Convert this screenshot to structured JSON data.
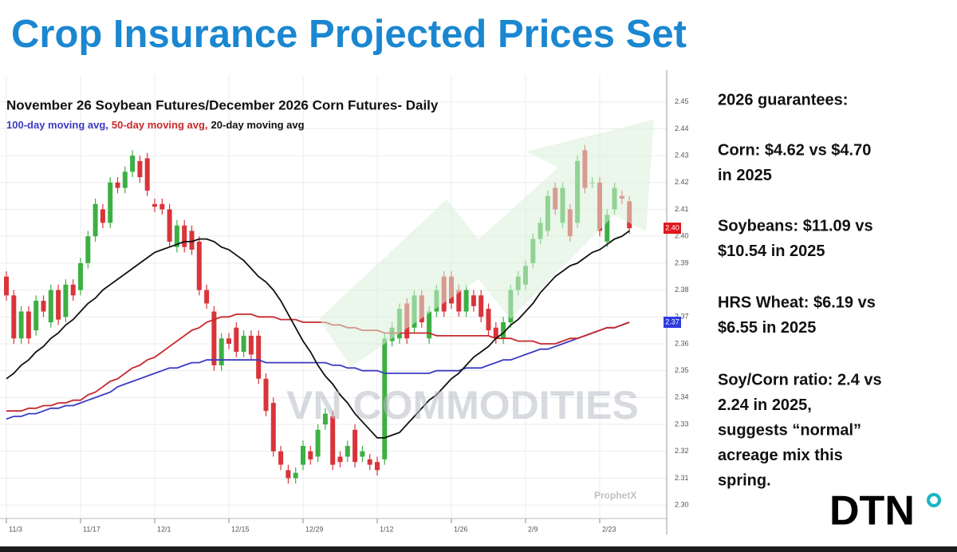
{
  "title": "Crop Insurance Projected Prices Set",
  "chart_data": {
    "type": "candlestick",
    "title": "November 26 Soybean Futures/December 2026 Corn Futures- Daily",
    "categories": [
      "11/3",
      null,
      null,
      null,
      null,
      null,
      null,
      null,
      null,
      null,
      "11/17",
      null,
      null,
      null,
      null,
      null,
      null,
      null,
      null,
      null,
      "12/1",
      null,
      null,
      null,
      null,
      null,
      null,
      null,
      null,
      null,
      "12/15",
      null,
      null,
      null,
      null,
      null,
      null,
      null,
      null,
      null,
      "12/29",
      null,
      null,
      null,
      null,
      null,
      null,
      null,
      null,
      null,
      "1/12",
      null,
      null,
      null,
      null,
      null,
      null,
      null,
      null,
      null,
      "1/26",
      null,
      null,
      null,
      null,
      null,
      null,
      null,
      null,
      null,
      "2/9",
      null,
      null,
      null,
      null,
      null,
      null,
      null,
      null,
      null,
      "2/23",
      null,
      null,
      null,
      null
    ],
    "open": [
      2.385,
      2.378,
      2.362,
      2.372,
      2.365,
      2.376,
      2.368,
      2.38,
      2.37,
      2.382,
      2.38,
      2.39,
      2.4,
      2.41,
      2.405,
      2.42,
      2.418,
      2.424,
      2.428,
      2.429,
      2.412,
      2.412,
      2.41,
      2.396,
      2.404,
      2.402,
      2.398,
      2.38,
      2.372,
      2.352,
      2.362,
      2.366,
      2.357,
      2.363,
      2.363,
      2.347,
      2.338,
      2.32,
      2.313,
      2.31,
      2.315,
      2.32,
      2.318,
      2.33,
      2.333,
      2.318,
      2.318,
      2.328,
      2.318,
      2.317,
      2.316,
      2.317,
      2.361,
      2.362,
      2.375,
      2.366,
      2.378,
      2.362,
      2.372,
      2.385,
      2.385,
      2.38,
      2.372,
      2.378,
      2.378,
      2.373,
      2.366,
      2.362,
      2.368,
      2.38,
      2.382,
      2.39,
      2.399,
      2.402,
      2.418,
      2.405,
      2.41,
      2.405,
      2.432,
      2.42,
      2.42,
      2.398,
      2.41,
      2.415,
      2.413
    ],
    "high": [
      2.387,
      2.38,
      2.374,
      2.374,
      2.378,
      2.378,
      2.382,
      2.382,
      2.384,
      2.384,
      2.392,
      2.402,
      2.414,
      2.412,
      2.422,
      2.422,
      2.426,
      2.432,
      2.43,
      2.431,
      2.414,
      2.414,
      2.412,
      2.406,
      2.406,
      2.404,
      2.4,
      2.382,
      2.374,
      2.364,
      2.364,
      2.368,
      2.365,
      2.365,
      2.365,
      2.349,
      2.34,
      2.322,
      2.315,
      2.314,
      2.324,
      2.322,
      2.33,
      2.336,
      2.335,
      2.32,
      2.324,
      2.33,
      2.322,
      2.319,
      2.318,
      2.364,
      2.368,
      2.375,
      2.377,
      2.38,
      2.38,
      2.374,
      2.382,
      2.387,
      2.387,
      2.382,
      2.382,
      2.38,
      2.38,
      2.375,
      2.368,
      2.37,
      2.382,
      2.387,
      2.391,
      2.401,
      2.407,
      2.417,
      2.42,
      2.42,
      2.412,
      2.43,
      2.434,
      2.422,
      2.422,
      2.41,
      2.42,
      2.417,
      2.415
    ],
    "low": [
      2.376,
      2.36,
      2.36,
      2.36,
      2.363,
      2.37,
      2.366,
      2.367,
      2.368,
      2.376,
      2.378,
      2.388,
      2.398,
      2.403,
      2.403,
      2.416,
      2.416,
      2.422,
      2.42,
      2.415,
      2.409,
      2.408,
      2.396,
      2.394,
      2.394,
      2.393,
      2.378,
      2.373,
      2.35,
      2.35,
      2.358,
      2.355,
      2.355,
      2.354,
      2.345,
      2.333,
      2.318,
      2.313,
      2.308,
      2.308,
      2.313,
      2.315,
      2.316,
      2.328,
      2.313,
      2.314,
      2.316,
      2.314,
      2.316,
      2.313,
      2.311,
      2.315,
      2.359,
      2.36,
      2.36,
      2.364,
      2.366,
      2.36,
      2.37,
      2.37,
      2.373,
      2.37,
      2.37,
      2.372,
      2.368,
      2.363,
      2.36,
      2.36,
      2.366,
      2.378,
      2.38,
      2.388,
      2.397,
      2.4,
      2.408,
      2.403,
      2.398,
      2.403,
      2.416,
      2.418,
      2.4,
      2.396,
      2.408,
      2.412,
      2.401
    ],
    "close": [
      2.378,
      2.362,
      2.372,
      2.362,
      2.376,
      2.372,
      2.38,
      2.369,
      2.382,
      2.378,
      2.39,
      2.4,
      2.412,
      2.405,
      2.42,
      2.418,
      2.424,
      2.43,
      2.422,
      2.417,
      2.411,
      2.41,
      2.398,
      2.404,
      2.396,
      2.395,
      2.38,
      2.375,
      2.352,
      2.362,
      2.36,
      2.357,
      2.363,
      2.356,
      2.347,
      2.335,
      2.32,
      2.315,
      2.31,
      2.312,
      2.322,
      2.317,
      2.328,
      2.334,
      2.315,
      2.316,
      2.322,
      2.316,
      2.32,
      2.315,
      2.313,
      2.362,
      2.366,
      2.373,
      2.362,
      2.378,
      2.368,
      2.372,
      2.38,
      2.372,
      2.375,
      2.372,
      2.38,
      2.374,
      2.37,
      2.365,
      2.362,
      2.368,
      2.38,
      2.385,
      2.389,
      2.399,
      2.405,
      2.415,
      2.41,
      2.418,
      2.4,
      2.428,
      2.418,
      2.42,
      2.402,
      2.408,
      2.418,
      2.414,
      2.403
    ],
    "up_color": "#3cb043",
    "down_color": "#d9343a",
    "series": [
      {
        "name": "100-day moving avg,",
        "color": "#3b3bc4",
        "values": [
          2.332,
          2.333,
          2.333,
          2.334,
          2.334,
          2.335,
          2.336,
          2.336,
          2.337,
          2.337,
          2.338,
          2.339,
          2.34,
          2.341,
          2.342,
          2.344,
          2.345,
          2.346,
          2.347,
          2.348,
          2.349,
          2.35,
          2.351,
          2.351,
          2.352,
          2.353,
          2.353,
          2.354,
          2.354,
          2.354,
          2.354,
          2.354,
          2.354,
          2.354,
          2.354,
          2.353,
          2.353,
          2.353,
          2.353,
          2.353,
          2.353,
          2.353,
          2.353,
          2.353,
          2.352,
          2.352,
          2.351,
          2.351,
          2.35,
          2.35,
          2.35,
          2.349,
          2.349,
          2.349,
          2.349,
          2.349,
          2.349,
          2.349,
          2.35,
          2.35,
          2.35,
          2.35,
          2.351,
          2.351,
          2.351,
          2.352,
          2.353,
          2.354,
          2.354,
          2.355,
          2.356,
          2.357,
          2.358,
          2.358,
          2.359,
          2.36,
          2.361,
          2.362,
          2.363,
          2.364,
          2.365,
          2.366,
          2.366,
          2.367,
          2.368
        ]
      },
      {
        "name": "50-day moving avg,",
        "color": "#c8282c",
        "values": [
          2.335,
          2.335,
          2.335,
          2.336,
          2.336,
          2.337,
          2.337,
          2.338,
          2.338,
          2.339,
          2.339,
          2.341,
          2.342,
          2.344,
          2.346,
          2.347,
          2.349,
          2.351,
          2.352,
          2.354,
          2.355,
          2.357,
          2.359,
          2.361,
          2.363,
          2.365,
          2.366,
          2.368,
          2.369,
          2.37,
          2.37,
          2.371,
          2.371,
          2.371,
          2.37,
          2.37,
          2.37,
          2.369,
          2.369,
          2.369,
          2.368,
          2.368,
          2.368,
          2.368,
          2.367,
          2.367,
          2.366,
          2.366,
          2.365,
          2.365,
          2.365,
          2.364,
          2.364,
          2.364,
          2.364,
          2.364,
          2.364,
          2.364,
          2.363,
          2.363,
          2.363,
          2.363,
          2.363,
          2.363,
          2.363,
          2.363,
          2.362,
          2.362,
          2.362,
          2.361,
          2.361,
          2.361,
          2.36,
          2.36,
          2.36,
          2.361,
          2.362,
          2.362,
          2.363,
          2.364,
          2.365,
          2.366,
          2.366,
          2.367,
          2.368
        ]
      },
      {
        "name": "20-day moving avg",
        "color": "#111111",
        "values": [
          2.347,
          2.349,
          2.352,
          2.354,
          2.357,
          2.359,
          2.362,
          2.364,
          2.367,
          2.369,
          2.372,
          2.375,
          2.377,
          2.38,
          2.382,
          2.384,
          2.386,
          2.388,
          2.39,
          2.392,
          2.394,
          2.395,
          2.396,
          2.397,
          2.398,
          2.398,
          2.399,
          2.399,
          2.398,
          2.396,
          2.395,
          2.393,
          2.391,
          2.388,
          2.385,
          2.383,
          2.38,
          2.376,
          2.371,
          2.366,
          2.361,
          2.357,
          2.352,
          2.348,
          2.345,
          2.341,
          2.338,
          2.334,
          2.331,
          2.328,
          2.325,
          2.325,
          2.326,
          2.327,
          2.33,
          2.333,
          2.336,
          2.339,
          2.341,
          2.344,
          2.347,
          2.349,
          2.352,
          2.355,
          2.357,
          2.359,
          2.362,
          2.364,
          2.367,
          2.369,
          2.372,
          2.375,
          2.379,
          2.382,
          2.385,
          2.387,
          2.389,
          2.39,
          2.392,
          2.394,
          2.395,
          2.397,
          2.399,
          2.4,
          2.402
        ]
      }
    ],
    "ylim": [
      2.295,
      2.46
    ],
    "yticks": [
      {
        "value": 2.3,
        "label": "2.30"
      },
      2.31,
      2.32,
      2.33,
      2.34,
      2.35,
      2.36,
      2.37,
      2.38,
      2.39,
      {
        "value": 2.4,
        "label": "2.40"
      },
      2.41,
      2.42,
      2.43,
      2.44,
      2.45
    ],
    "grid": true,
    "price_tags": [
      {
        "value": 2.403,
        "label": "2.40",
        "color": "#e0161b"
      },
      {
        "value": 2.368,
        "label": "2.37",
        "color": "#2d3be0"
      }
    ]
  },
  "watermark": "VN COMMODITIES",
  "source": "ProphetX",
  "panel": {
    "heading": "2026 guarantees:",
    "blocks": [
      {
        "lines": [
          "Corn: $4.62 vs $4.70",
          "in 2025"
        ]
      },
      {
        "lines": [
          "Soybeans: $11.09 vs",
          "$10.54 in 2025"
        ]
      },
      {
        "lines": [
          "HRS Wheat: $6.19 vs",
          "$6.55 in 2025"
        ]
      },
      {
        "lines": [
          "Soy/Corn ratio: 2.4 vs",
          "2.24 in 2025,",
          "suggests “normal”",
          "acreage mix this",
          "spring."
        ]
      }
    ]
  },
  "logo": "DTN"
}
